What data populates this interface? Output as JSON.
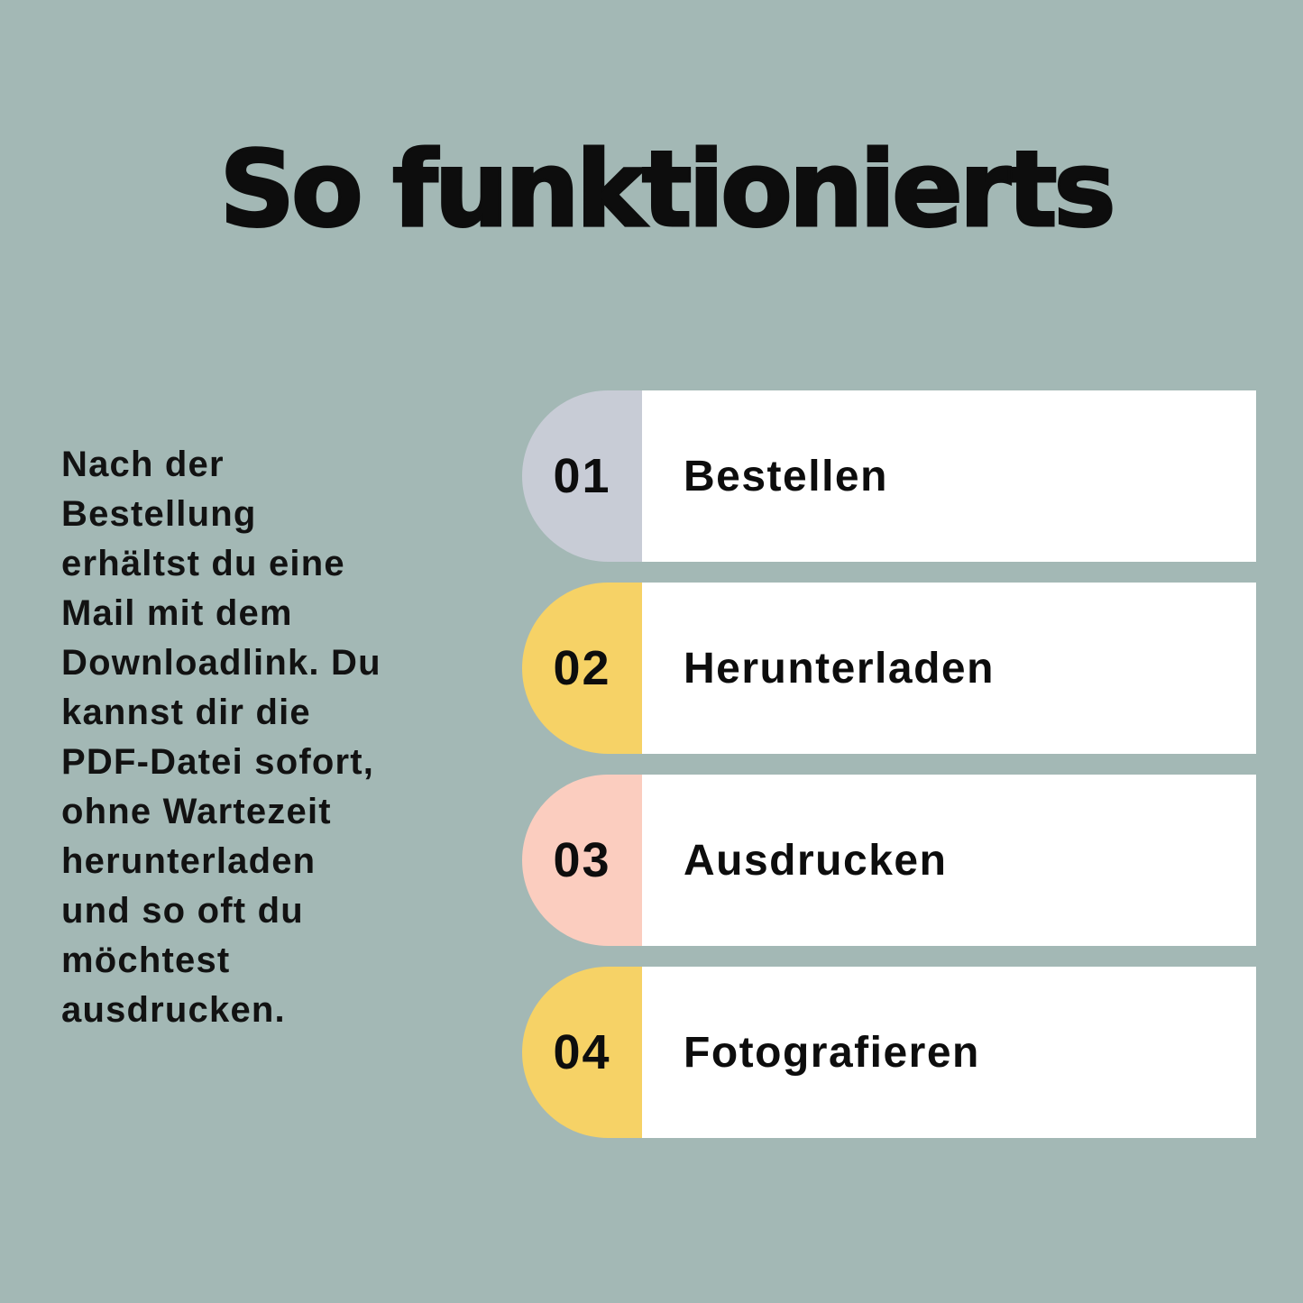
{
  "title": "So funktionierts",
  "description": "Nach der\nBestellung\nerhältst du eine\nMail mit dem\nDownloadlink. Du\nkannst dir die\nPDF-Datei sofort,\nohne Wartezeit\nherunterladen\nund so oft du\nmöchtest\nausdrucken.",
  "steps": [
    {
      "number": "01",
      "label": "Bestellen",
      "badge_color": "#c8ccd6"
    },
    {
      "number": "02",
      "label": "Herunterladen",
      "badge_color": "#f6d266"
    },
    {
      "number": "03",
      "label": "Ausdrucken",
      "badge_color": "#fbcdbf"
    },
    {
      "number": "04",
      "label": "Fotografieren",
      "badge_color": "#f6d266"
    }
  ],
  "colors": {
    "background": "#a3b8b5",
    "card": "#ffffff",
    "text": "#0d0d0d"
  }
}
